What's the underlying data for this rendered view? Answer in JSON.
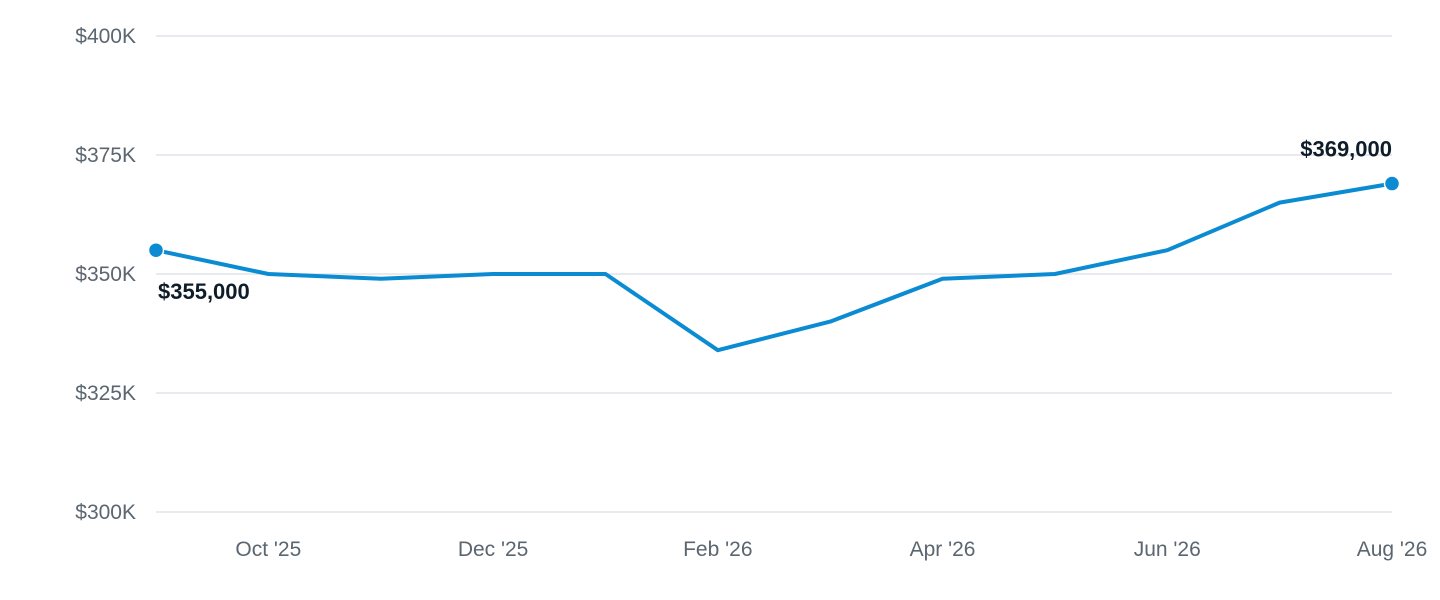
{
  "chart_data": {
    "type": "line",
    "x": [
      "Sep '25",
      "Oct '25",
      "Nov '25",
      "Dec '25",
      "Jan '26",
      "Feb '26",
      "Mar '26",
      "Apr '26",
      "May '26",
      "Jun '26",
      "Jul '26",
      "Aug '26"
    ],
    "x_tick_labels": [
      "",
      "Oct '25",
      "",
      "Dec '25",
      "",
      "Feb '26",
      "",
      "Apr '26",
      "",
      "Jun '26",
      "",
      "Aug '26"
    ],
    "series": [
      {
        "values": [
          355000,
          350000,
          349000,
          350000,
          350000,
          334000,
          340000,
          349000,
          350000,
          355000,
          365000,
          369000
        ]
      }
    ],
    "y_tick_values": [
      300000,
      325000,
      350000,
      375000,
      400000
    ],
    "y_tick_labels": [
      "$300K",
      "$325K",
      "$350K",
      "$375K",
      "$400K"
    ],
    "ylim": [
      300000,
      400000
    ],
    "grid": true,
    "line_color": "#0b8bd2",
    "data_labels": [
      {
        "index": 0,
        "text": "$355,000"
      },
      {
        "index": 11,
        "text": "$369,000"
      }
    ],
    "title": "",
    "xlabel": "",
    "ylabel": ""
  }
}
